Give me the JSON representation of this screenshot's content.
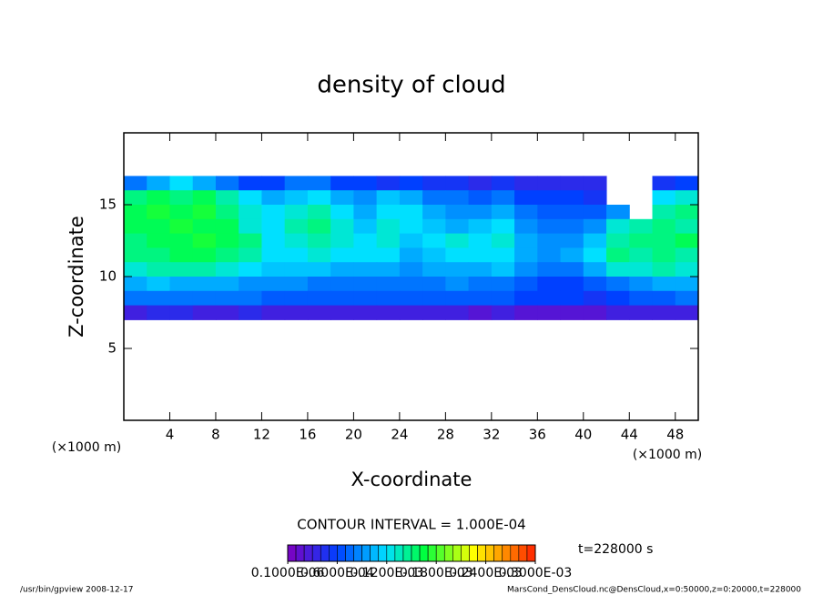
{
  "chart_data": {
    "type": "heatmap",
    "title": "density of cloud",
    "x_label": "X-coordinate",
    "y_label": "Z-coordinate",
    "x_unit": "(×1000 m)",
    "y_unit": "(×1000 m)",
    "xlim": [
      0,
      50
    ],
    "ylim": [
      0,
      20
    ],
    "xticks": [
      4,
      8,
      12,
      16,
      20,
      24,
      28,
      32,
      36,
      40,
      44,
      48
    ],
    "yticks": [
      5,
      10,
      15
    ],
    "x": [
      1,
      3,
      5,
      7,
      9,
      11,
      13,
      15,
      17,
      19,
      21,
      23,
      25,
      27,
      29,
      31,
      33,
      35,
      37,
      39,
      41,
      43,
      45,
      47,
      49
    ],
    "z": [
      16.5,
      15.5,
      14.5,
      13.5,
      12.5,
      11.5,
      10.5,
      9.5,
      8.5,
      7.5
    ],
    "values": [
      [
        8e-05,
        0.0001,
        0.00012,
        0.0001,
        8e-05,
        6e-05,
        6e-05,
        8e-05,
        8e-05,
        6e-05,
        6e-05,
        5e-05,
        6e-05,
        5e-05,
        5e-05,
        4e-05,
        5e-05,
        4e-05,
        4e-05,
        4e-05,
        4e-05,
        null,
        null,
        5e-05,
        6e-05
      ],
      [
        0.00015,
        0.00016,
        0.00015,
        0.00016,
        0.00014,
        0.00012,
        0.0001,
        0.00011,
        0.00012,
        0.0001,
        9e-05,
        0.00011,
        0.0001,
        8e-05,
        8e-05,
        7e-05,
        8e-05,
        6e-05,
        6e-05,
        6e-05,
        5e-05,
        null,
        null,
        0.00012,
        0.00013
      ],
      [
        0.00016,
        0.00017,
        0.00016,
        0.00017,
        0.00015,
        0.00013,
        0.00012,
        0.00013,
        0.00014,
        0.00012,
        0.0001,
        0.00012,
        0.00012,
        0.0001,
        9e-05,
        9e-05,
        0.0001,
        8e-05,
        7e-05,
        7e-05,
        7e-05,
        9e-05,
        null,
        0.00014,
        0.00015
      ],
      [
        0.00016,
        0.00016,
        0.00017,
        0.00016,
        0.00016,
        0.00013,
        0.00012,
        0.00014,
        0.00015,
        0.00013,
        0.00011,
        0.00013,
        0.00012,
        0.00011,
        0.0001,
        0.00011,
        0.00012,
        9e-05,
        8e-05,
        8e-05,
        9e-05,
        0.00013,
        0.00014,
        0.00015,
        0.00014
      ],
      [
        0.00015,
        0.00016,
        0.00016,
        0.00017,
        0.00016,
        0.00015,
        0.00012,
        0.00013,
        0.00014,
        0.00013,
        0.00012,
        0.00013,
        0.00011,
        0.00012,
        0.00013,
        0.00012,
        0.00013,
        0.0001,
        9e-05,
        9e-05,
        0.00011,
        0.00014,
        0.00015,
        0.00015,
        0.00016
      ],
      [
        0.00015,
        0.00015,
        0.00016,
        0.00016,
        0.00015,
        0.00014,
        0.00012,
        0.00012,
        0.00013,
        0.00012,
        0.00012,
        0.00012,
        0.0001,
        0.00011,
        0.00012,
        0.00012,
        0.00012,
        0.0001,
        9e-05,
        0.0001,
        0.00012,
        0.00015,
        0.00014,
        0.00015,
        0.00014
      ],
      [
        0.00013,
        0.00014,
        0.00014,
        0.00014,
        0.00013,
        0.00012,
        0.00011,
        0.00011,
        0.00011,
        0.0001,
        0.0001,
        0.0001,
        9e-05,
        0.0001,
        0.0001,
        0.0001,
        0.00011,
        9e-05,
        8e-05,
        8e-05,
        0.0001,
        0.00013,
        0.00013,
        0.00014,
        0.00013
      ],
      [
        0.0001,
        0.00011,
        0.0001,
        0.0001,
        0.0001,
        9e-05,
        9e-05,
        9e-05,
        8e-05,
        8e-05,
        8e-05,
        8e-05,
        8e-05,
        8e-05,
        9e-05,
        8e-05,
        8e-05,
        7e-05,
        6e-05,
        6e-05,
        7e-05,
        8e-05,
        9e-05,
        0.0001,
        0.0001
      ],
      [
        8e-05,
        8e-05,
        8e-05,
        8e-05,
        8e-05,
        8e-05,
        7e-05,
        7e-05,
        7e-05,
        7e-05,
        7e-05,
        7e-05,
        7e-05,
        7e-05,
        7e-05,
        7e-05,
        7e-05,
        6e-05,
        6e-05,
        6e-05,
        5e-05,
        6e-05,
        7e-05,
        7e-05,
        8e-05
      ],
      [
        3e-05,
        4e-05,
        4e-05,
        3e-05,
        3e-05,
        4e-05,
        3e-05,
        3e-05,
        3e-05,
        3e-05,
        3e-05,
        3e-05,
        3e-05,
        3e-05,
        3e-05,
        2e-05,
        3e-05,
        2e-05,
        2e-05,
        2e-05,
        2e-05,
        3e-05,
        3e-05,
        3e-05,
        3e-05
      ]
    ],
    "contour_interval": "CONTOUR INTERVAL = 1.000E-04",
    "time_label": "t=228000 s",
    "colorbar": {
      "lim": [
        0,
        0.0003
      ],
      "ticks": [
        {
          "value": 1e-07,
          "label": "0.1000E-06"
        },
        {
          "value": 6e-05,
          "label": "0.6000E-04"
        },
        {
          "value": 0.00012,
          "label": "0.1200E-03"
        },
        {
          "value": 0.00018,
          "label": "0.1800E-03"
        },
        {
          "value": 0.00024,
          "label": "0.2400E-03"
        },
        {
          "value": 0.0003,
          "label": "0.3000E-03"
        }
      ]
    },
    "footer_left": "/usr/bin/gpview  2008-12-17",
    "footer_right": "MarsCond_DensCloud.nc@DensCloud,x=0:50000,z=0:20000,t=228000"
  }
}
